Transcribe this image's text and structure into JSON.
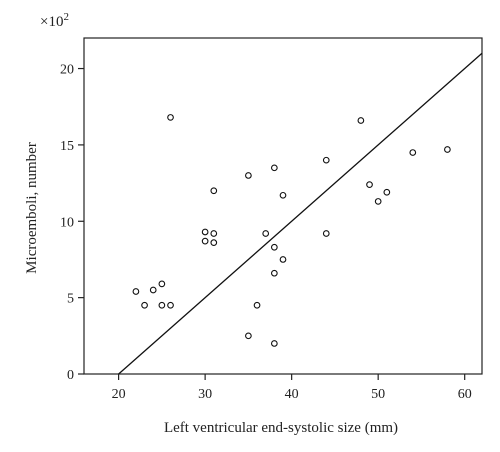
{
  "chart_data": {
    "type": "scatter",
    "title": "",
    "xlabel": "Left ventricular end-systolic size (mm)",
    "ylabel": "Microemboli, number",
    "y_multiplier": "×10",
    "y_multiplier_exp": "2",
    "xlim": [
      16,
      62
    ],
    "ylim": [
      0,
      22
    ],
    "x_ticks": [
      20,
      30,
      40,
      50,
      60
    ],
    "y_ticks": [
      0,
      5,
      10,
      15,
      20
    ],
    "grid": false,
    "legend": "none",
    "marker": "open-circle",
    "points": [
      {
        "x": 22,
        "y": 5.4
      },
      {
        "x": 23,
        "y": 4.5
      },
      {
        "x": 24,
        "y": 5.5
      },
      {
        "x": 25,
        "y": 5.9
      },
      {
        "x": 25,
        "y": 4.5
      },
      {
        "x": 26,
        "y": 4.5
      },
      {
        "x": 26,
        "y": 16.8
      },
      {
        "x": 30,
        "y": 9.3
      },
      {
        "x": 30,
        "y": 8.7
      },
      {
        "x": 31,
        "y": 8.6
      },
      {
        "x": 31,
        "y": 9.2
      },
      {
        "x": 31,
        "y": 12.0
      },
      {
        "x": 35,
        "y": 13.0
      },
      {
        "x": 35,
        "y": 2.5
      },
      {
        "x": 36,
        "y": 4.5
      },
      {
        "x": 37,
        "y": 9.2
      },
      {
        "x": 38,
        "y": 8.3
      },
      {
        "x": 38,
        "y": 6.6
      },
      {
        "x": 38,
        "y": 13.5
      },
      {
        "x": 38,
        "y": 2.0
      },
      {
        "x": 39,
        "y": 7.5
      },
      {
        "x": 39,
        "y": 11.7
      },
      {
        "x": 44,
        "y": 14.0
      },
      {
        "x": 44,
        "y": 9.2
      },
      {
        "x": 48,
        "y": 16.6
      },
      {
        "x": 49,
        "y": 12.4
      },
      {
        "x": 50,
        "y": 11.3
      },
      {
        "x": 51,
        "y": 11.9
      },
      {
        "x": 54,
        "y": 14.5
      },
      {
        "x": 58,
        "y": 14.7
      }
    ],
    "regression_line": {
      "x": [
        20,
        62
      ],
      "y": [
        0,
        21
      ]
    }
  }
}
